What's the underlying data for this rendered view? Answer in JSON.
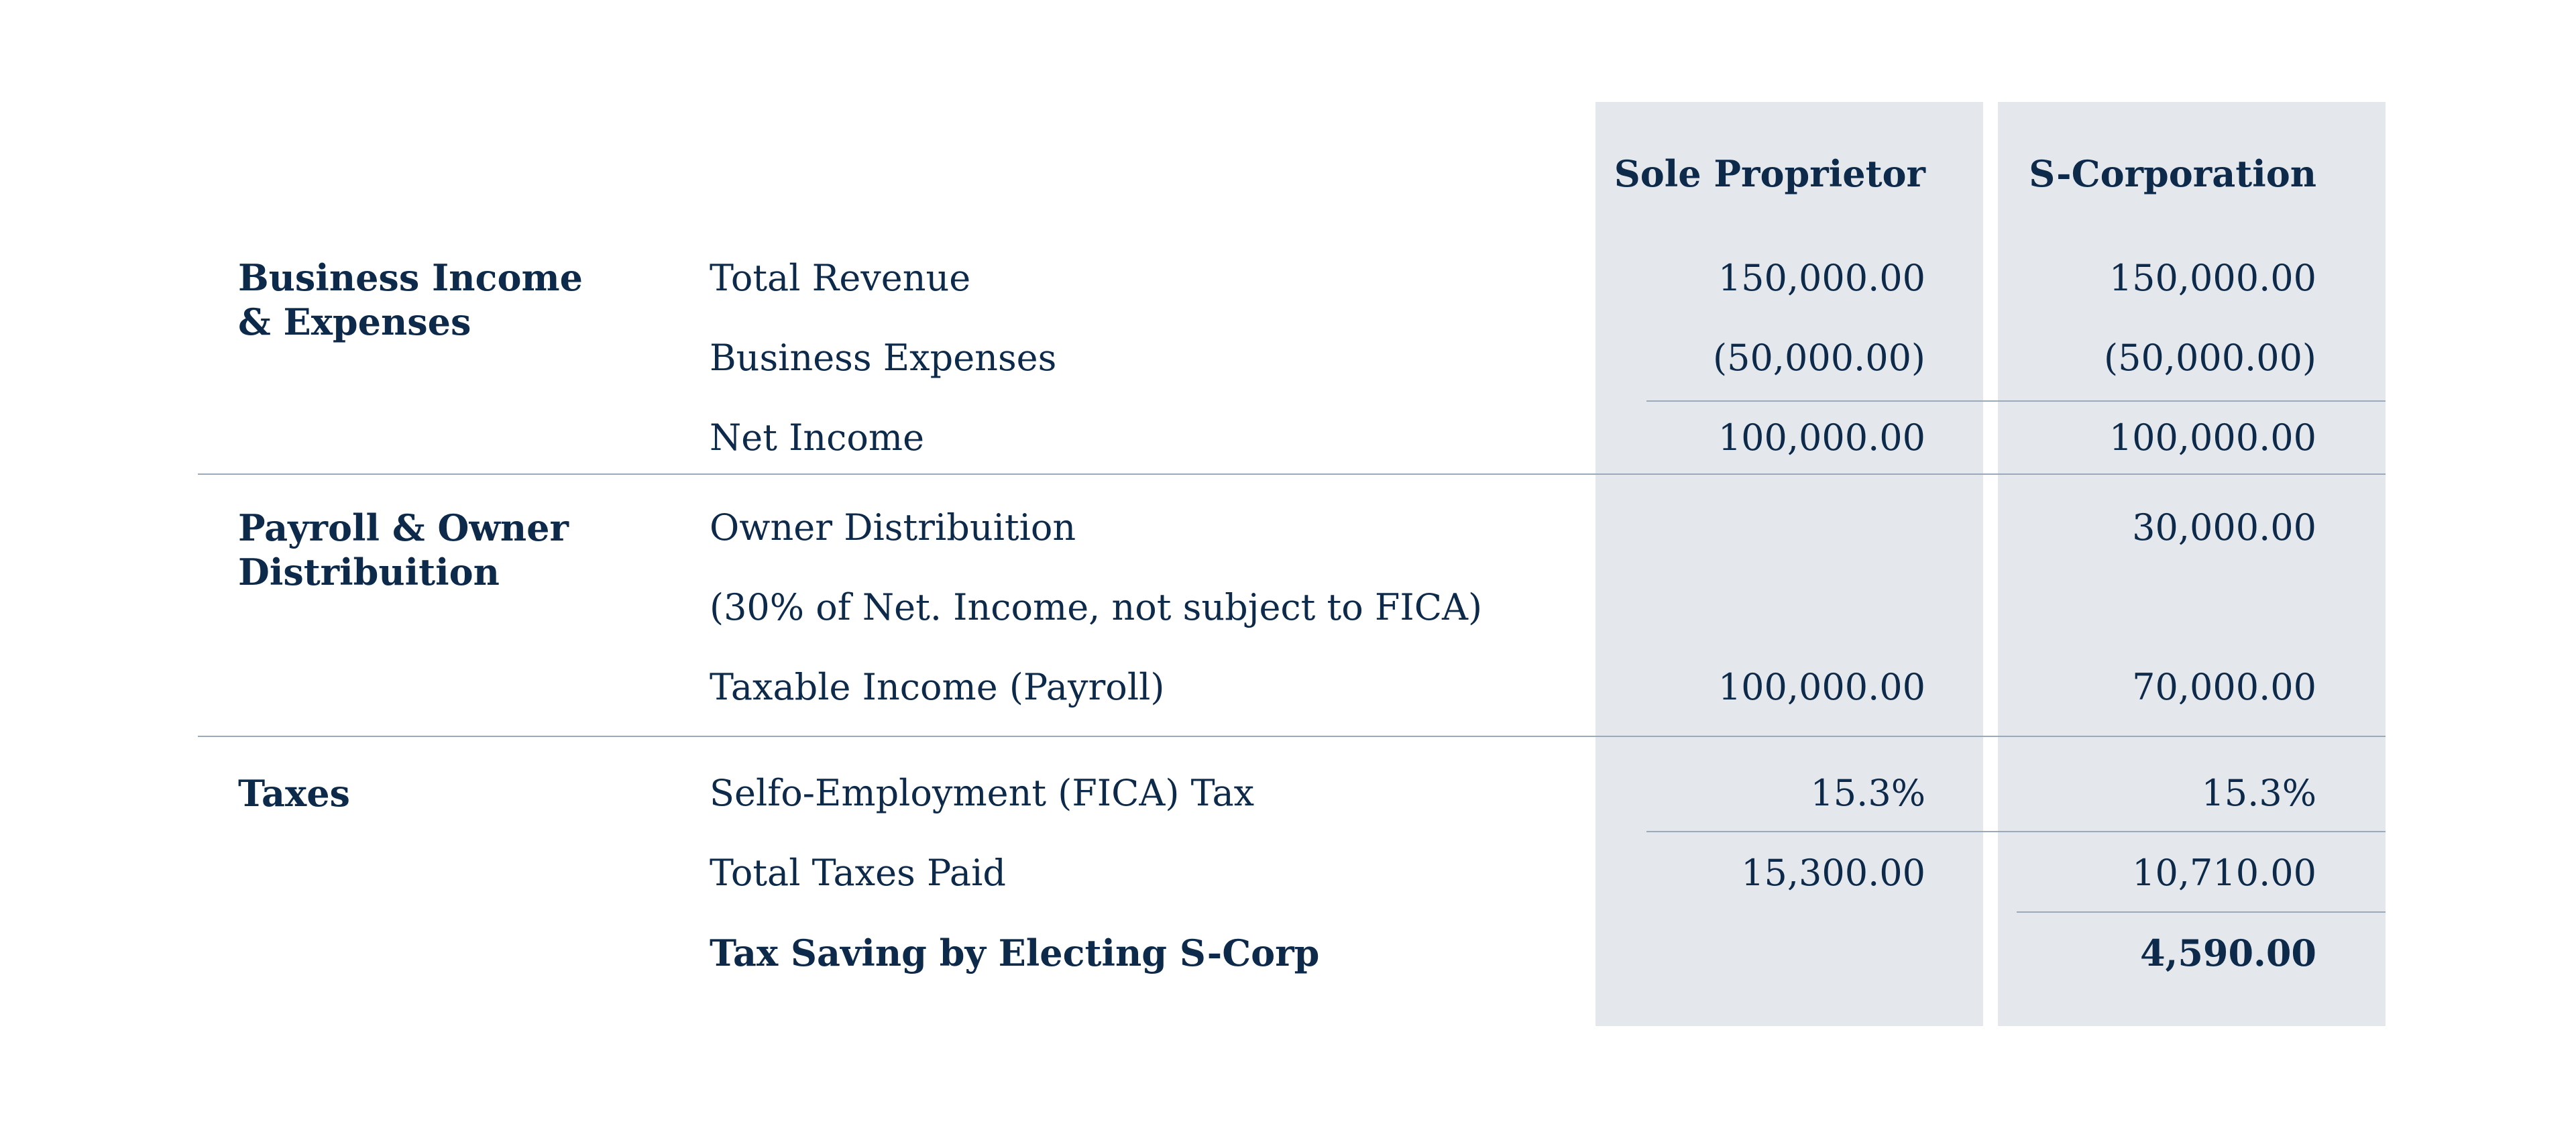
{
  "headers": {
    "sole": "Sole Proprietor",
    "scorp": "S-Corporation"
  },
  "groups": [
    {
      "title_line1": "Business Income",
      "title_line2": "& Expenses"
    },
    {
      "title_line1": "Payroll & Owner",
      "title_line2": "Distribuition"
    },
    {
      "title_line1": "Taxes",
      "title_line2": ""
    }
  ],
  "rows": [
    {
      "label": "Total Revenue",
      "sole": "150,000.00",
      "scorp": "150,000.00"
    },
    {
      "label": "Business Expenses",
      "sole": "(50,000.00)",
      "scorp": "(50,000.00)"
    },
    {
      "label": "Net Income",
      "sole": "100,000.00",
      "scorp": "100,000.00"
    },
    {
      "label": "Owner Distribuition",
      "sole": "",
      "scorp": "30,000.00"
    },
    {
      "label": "(30% of Net. Income, not subject to FICA)",
      "sole": "",
      "scorp": ""
    },
    {
      "label": "Taxable Income (Payroll)",
      "sole": "100,000.00",
      "scorp": "70,000.00"
    },
    {
      "label": "Selfo-Employment (FICA) Tax",
      "sole": "15.3%",
      "scorp": "15.3%"
    },
    {
      "label": "Total Taxes Paid",
      "sole": "15,300.00",
      "scorp": "10,710.00"
    },
    {
      "label": "Tax Saving by Electing S-Corp",
      "sole": "",
      "scorp": "4,590.00"
    }
  ],
  "colors": {
    "text": "#0e2a4a",
    "column_bg": "#e4e8ed",
    "rule": "#9aaabb"
  }
}
